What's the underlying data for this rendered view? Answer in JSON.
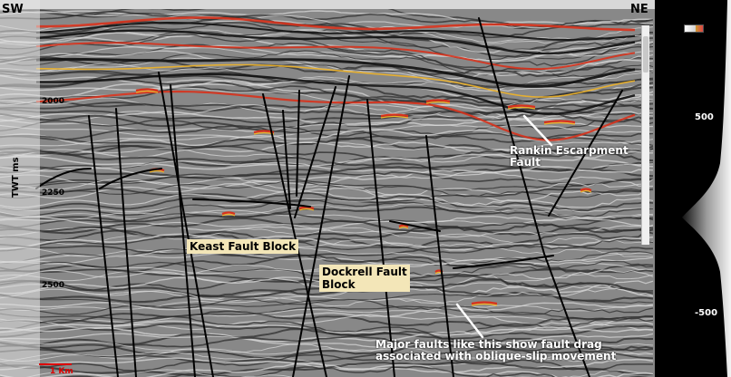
{
  "section": {
    "left_end": "SW",
    "right_end": "NE",
    "axis_title": "TWT ms",
    "ticks": [
      "2000",
      "2250",
      "2500"
    ],
    "scale_bar": "1 Km"
  },
  "labels": {
    "keast": "Keast Fault Block",
    "dockrell_line1": "Dockrell Fault",
    "dockrell_line2": "Block",
    "rankin_line1": "Rankin Escarpment",
    "rankin_line2": "Fault",
    "note_line1": "Major faults like this show fault drag",
    "note_line2": "associated with oblique-slip movement"
  },
  "panel": {
    "ticks": [
      "500",
      "-500"
    ]
  },
  "colors": {
    "amplitude_high": "#d8321c",
    "amplitude_mid": "#f0b428",
    "fault_line": "#000000",
    "label_box": "#f3e6b8",
    "scale_bar": "#d00000"
  }
}
